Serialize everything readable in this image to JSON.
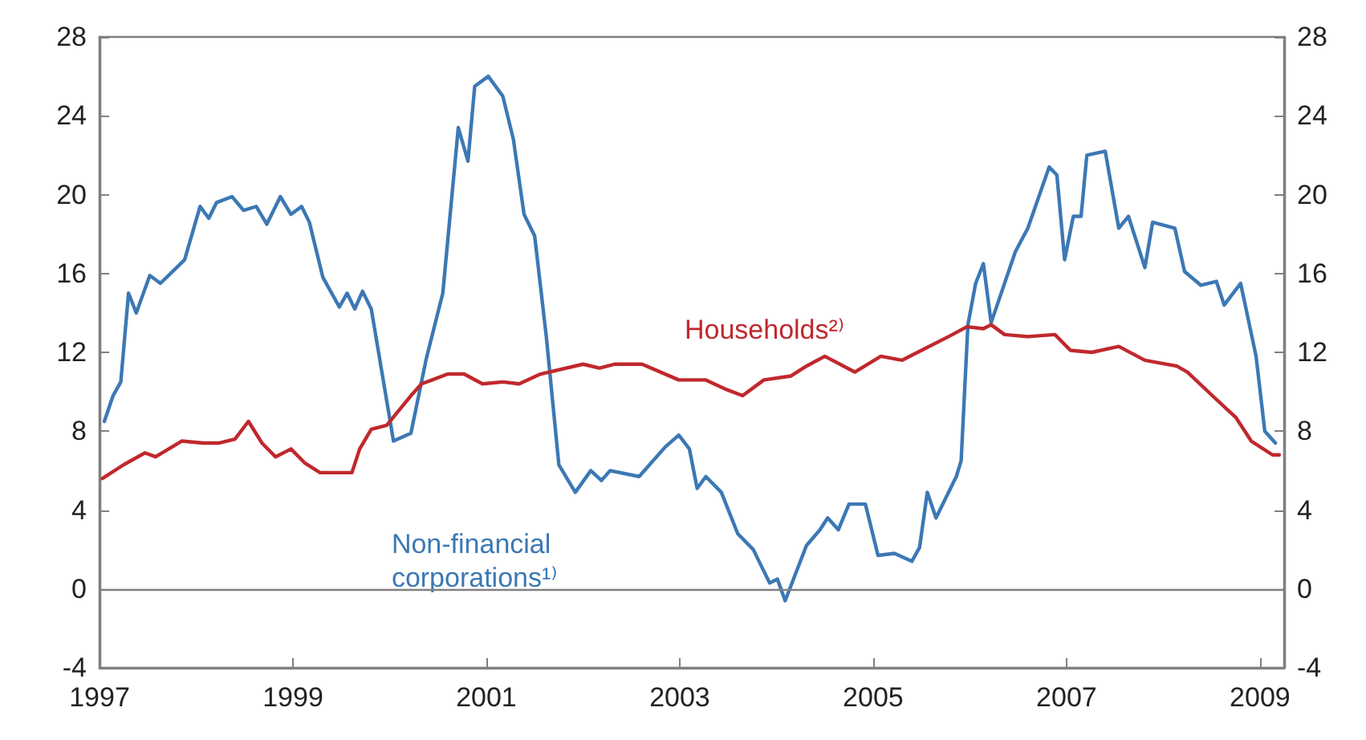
{
  "chart_data": {
    "type": "line",
    "xlim": [
      1997,
      2009.25
    ],
    "xticks": [
      1997,
      1999,
      2001,
      2003,
      2005,
      2007,
      2009
    ],
    "ylim": [
      -4,
      28
    ],
    "yticks": [
      -4,
      0,
      4,
      8,
      12,
      16,
      20,
      24,
      28
    ],
    "y2lim": [
      -4,
      28
    ],
    "y2ticks": [
      -4,
      0,
      4,
      8,
      12,
      16,
      20,
      24,
      28
    ],
    "grid": false,
    "legend": false,
    "marker": "none",
    "line_style": "solid",
    "ref_lines": [
      {
        "axis": "y",
        "value": 0,
        "color": "#808080"
      }
    ],
    "series": [
      {
        "name": "Non-financial corporations¹⁾",
        "color": "#3c78b4",
        "x": [
          1997.05,
          1997.14,
          1997.22,
          1997.3,
          1997.38,
          1997.52,
          1997.63,
          1997.88,
          1998.04,
          1998.13,
          1998.21,
          1998.37,
          1998.49,
          1998.62,
          1998.73,
          1998.87,
          1998.98,
          1999.09,
          1999.17,
          1999.31,
          1999.48,
          1999.56,
          1999.64,
          1999.72,
          1999.81,
          2000.04,
          2000.22,
          2000.38,
          2000.55,
          2000.71,
          2000.81,
          2000.88,
          2001.02,
          2001.17,
          2001.28,
          2001.39,
          2001.5,
          2001.62,
          2001.75,
          2001.92,
          2002.08,
          2002.19,
          2002.28,
          2002.58,
          2002.85,
          2002.99,
          2003.1,
          2003.18,
          2003.27,
          2003.43,
          2003.6,
          2003.76,
          2003.93,
          2004.01,
          2004.09,
          2004.31,
          2004.45,
          2004.53,
          2004.64,
          2004.75,
          2004.92,
          2005.05,
          2005.22,
          2005.4,
          2005.48,
          2005.56,
          2005.65,
          2005.86,
          2005.91,
          2005.98,
          2006.06,
          2006.14,
          2006.22,
          2006.47,
          2006.6,
          2006.82,
          2006.9,
          2006.98,
          2007.07,
          2007.15,
          2007.21,
          2007.4,
          2007.54,
          2007.64,
          2007.81,
          2007.89,
          2008.12,
          2008.22,
          2008.39,
          2008.55,
          2008.63,
          2008.8,
          2008.96,
          2009.05,
          2009.16
        ],
        "values": [
          8.5,
          9.8,
          10.5,
          15,
          14,
          15.9,
          15.5,
          16.7,
          19.4,
          18.8,
          19.6,
          19.9,
          19.2,
          19.4,
          18.5,
          19.9,
          19,
          19.4,
          18.6,
          15.8,
          14.3,
          15,
          14.2,
          15.1,
          14.2,
          7.5,
          7.9,
          11.7,
          15,
          23.4,
          21.7,
          25.5,
          26,
          25,
          22.8,
          19,
          17.9,
          12.8,
          6.3,
          4.9,
          6,
          5.5,
          6,
          5.7,
          7.2,
          7.8,
          7.1,
          5.1,
          5.7,
          4.9,
          2.8,
          2,
          0.3,
          0.5,
          -0.6,
          2.2,
          3,
          3.6,
          3,
          4.3,
          4.3,
          1.7,
          1.8,
          1.4,
          2.1,
          4.9,
          3.6,
          5.7,
          6.5,
          13.4,
          15.5,
          16.5,
          13.5,
          17.1,
          18.3,
          21.4,
          21,
          16.7,
          18.9,
          18.9,
          22,
          22.2,
          18.3,
          18.9,
          16.3,
          18.6,
          18.3,
          16.1,
          15.4,
          15.6,
          14.4,
          15.5,
          11.8,
          8,
          7.4
        ]
      },
      {
        "name": "Households²⁾",
        "color": "#c0282d",
        "x": [
          1997.03,
          1997.25,
          1997.47,
          1997.58,
          1997.85,
          1998.07,
          1998.24,
          1998.4,
          1998.54,
          1998.68,
          1998.82,
          1998.98,
          1999.12,
          1999.28,
          1999.61,
          1999.69,
          1999.81,
          1999.97,
          2000.22,
          2000.33,
          2000.44,
          2000.6,
          2000.77,
          2000.96,
          2001.17,
          2001.34,
          2001.56,
          2002,
          2002.17,
          2002.33,
          2002.61,
          2002.99,
          2003.27,
          2003.49,
          2003.65,
          2003.87,
          2004.15,
          2004.31,
          2004.5,
          2004.81,
          2005.08,
          2005.3,
          2005.5,
          2005.78,
          2005.97,
          2006.14,
          2006.22,
          2006.36,
          2006.6,
          2006.88,
          2007.04,
          2007.26,
          2007.54,
          2007.81,
          2008.14,
          2008.25,
          2008.53,
          2008.75,
          2008.91,
          2009.13,
          2009.2
        ],
        "values": [
          5.6,
          6.3,
          6.9,
          6.7,
          7.5,
          7.4,
          7.4,
          7.6,
          8.5,
          7.4,
          6.7,
          7.1,
          6.4,
          5.9,
          5.9,
          7.1,
          8.1,
          8.3,
          9.8,
          10.4,
          10.6,
          10.9,
          10.9,
          10.4,
          10.5,
          10.4,
          10.9,
          11.4,
          11.2,
          11.4,
          11.4,
          10.6,
          10.6,
          10.1,
          9.8,
          10.6,
          10.8,
          11.3,
          11.8,
          11,
          11.8,
          11.6,
          12.1,
          12.8,
          13.3,
          13.2,
          13.4,
          12.9,
          12.8,
          12.9,
          12.1,
          12,
          12.3,
          11.6,
          11.3,
          11,
          9.7,
          8.7,
          7.5,
          6.8,
          6.8
        ]
      }
    ]
  }
}
